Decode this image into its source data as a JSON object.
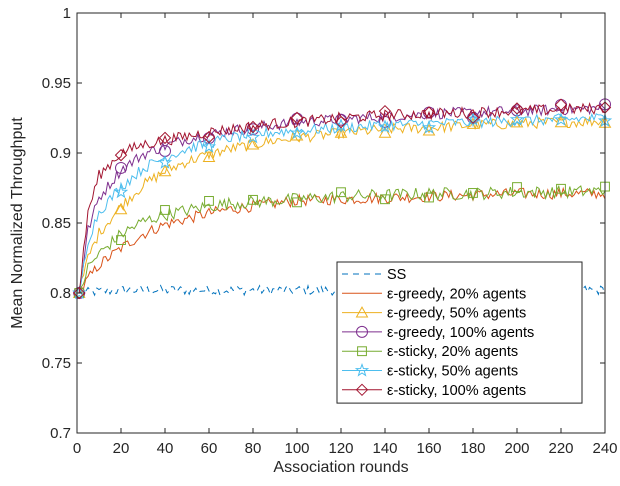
{
  "chart_data": {
    "type": "line",
    "xlabel": "Association rounds",
    "ylabel": "Mean Normalized Throughput",
    "xlim": [
      0,
      240
    ],
    "ylim": [
      0.7,
      1.0
    ],
    "xticks": [
      0,
      20,
      40,
      60,
      80,
      100,
      120,
      140,
      160,
      180,
      200,
      220,
      240
    ],
    "yticks": [
      0.7,
      0.75,
      0.8,
      0.85,
      0.9,
      0.95,
      1.0
    ],
    "ytick_labels": [
      "0.7",
      "0.75",
      "0.8",
      "0.85",
      "0.9",
      "0.95",
      "1"
    ],
    "xtick_labels": [
      "0",
      "20",
      "40",
      "60",
      "80",
      "100",
      "120",
      "140",
      "160",
      "180",
      "200",
      "220",
      "240"
    ],
    "grid": false,
    "legend_position": "bottom-right",
    "series": [
      {
        "name": "SS",
        "color": "#0072bd",
        "dash": "dashed",
        "marker": "none",
        "x": [
          1,
          10,
          20,
          40,
          60,
          80,
          100,
          120,
          140,
          160,
          180,
          200,
          220,
          240
        ],
        "y": [
          0.8,
          0.801,
          0.802,
          0.802,
          0.802,
          0.802,
          0.802,
          0.802,
          0.802,
          0.802,
          0.802,
          0.802,
          0.802,
          0.802
        ]
      },
      {
        "name": "ε-greedy, 20% agents",
        "color": "#d95319",
        "dash": "solid",
        "marker": "none",
        "x": [
          1,
          5,
          10,
          20,
          30,
          40,
          50,
          60,
          70,
          80,
          90,
          100,
          120,
          140,
          160,
          180,
          200,
          220,
          240
        ],
        "y": [
          0.8,
          0.81,
          0.82,
          0.832,
          0.842,
          0.849,
          0.853,
          0.857,
          0.86,
          0.862,
          0.864,
          0.866,
          0.867,
          0.868,
          0.869,
          0.87,
          0.871,
          0.871,
          0.871
        ]
      },
      {
        "name": "ε-greedy, 50% agents",
        "color": "#edb120",
        "dash": "solid",
        "marker": "triangle",
        "x": [
          1,
          5,
          10,
          20,
          30,
          40,
          50,
          60,
          70,
          80,
          90,
          100,
          120,
          140,
          160,
          180,
          200,
          220,
          240
        ],
        "y": [
          0.8,
          0.825,
          0.843,
          0.862,
          0.877,
          0.887,
          0.894,
          0.899,
          0.903,
          0.906,
          0.909,
          0.911,
          0.914,
          0.917,
          0.918,
          0.92,
          0.921,
          0.922,
          0.923
        ]
      },
      {
        "name": "ε-greedy, 100% agents",
        "color": "#7e2f8e",
        "dash": "solid",
        "marker": "circle",
        "x": [
          1,
          5,
          10,
          20,
          30,
          40,
          50,
          60,
          70,
          80,
          90,
          100,
          120,
          140,
          160,
          180,
          200,
          220,
          240
        ],
        "y": [
          0.8,
          0.845,
          0.868,
          0.888,
          0.899,
          0.905,
          0.91,
          0.913,
          0.916,
          0.918,
          0.92,
          0.922,
          0.924,
          0.926,
          0.928,
          0.929,
          0.93,
          0.931,
          0.932
        ]
      },
      {
        "name": "ε-sticky, 20% agents",
        "color": "#77ac30",
        "dash": "solid",
        "marker": "square",
        "x": [
          1,
          5,
          10,
          20,
          30,
          40,
          50,
          60,
          70,
          80,
          90,
          100,
          120,
          140,
          160,
          180,
          200,
          220,
          240
        ],
        "y": [
          0.8,
          0.818,
          0.828,
          0.842,
          0.851,
          0.856,
          0.859,
          0.862,
          0.864,
          0.865,
          0.866,
          0.867,
          0.869,
          0.87,
          0.871,
          0.871,
          0.872,
          0.872,
          0.873
        ]
      },
      {
        "name": "ε-sticky, 50% agents",
        "color": "#4dbeee",
        "dash": "solid",
        "marker": "star",
        "x": [
          1,
          5,
          10,
          20,
          30,
          40,
          50,
          60,
          70,
          80,
          90,
          100,
          120,
          140,
          160,
          180,
          200,
          220,
          240
        ],
        "y": [
          0.8,
          0.838,
          0.858,
          0.876,
          0.889,
          0.897,
          0.903,
          0.907,
          0.911,
          0.913,
          0.915,
          0.916,
          0.918,
          0.92,
          0.921,
          0.922,
          0.923,
          0.924,
          0.925
        ]
      },
      {
        "name": "ε-sticky, 100% agents",
        "color": "#a2142f",
        "dash": "solid",
        "marker": "diamond",
        "x": [
          1,
          5,
          10,
          20,
          30,
          40,
          50,
          60,
          70,
          80,
          90,
          100,
          120,
          140,
          160,
          180,
          200,
          220,
          240
        ],
        "y": [
          0.8,
          0.858,
          0.884,
          0.9,
          0.906,
          0.909,
          0.912,
          0.915,
          0.917,
          0.919,
          0.921,
          0.922,
          0.925,
          0.927,
          0.928,
          0.929,
          0.93,
          0.931,
          0.932
        ]
      }
    ]
  }
}
